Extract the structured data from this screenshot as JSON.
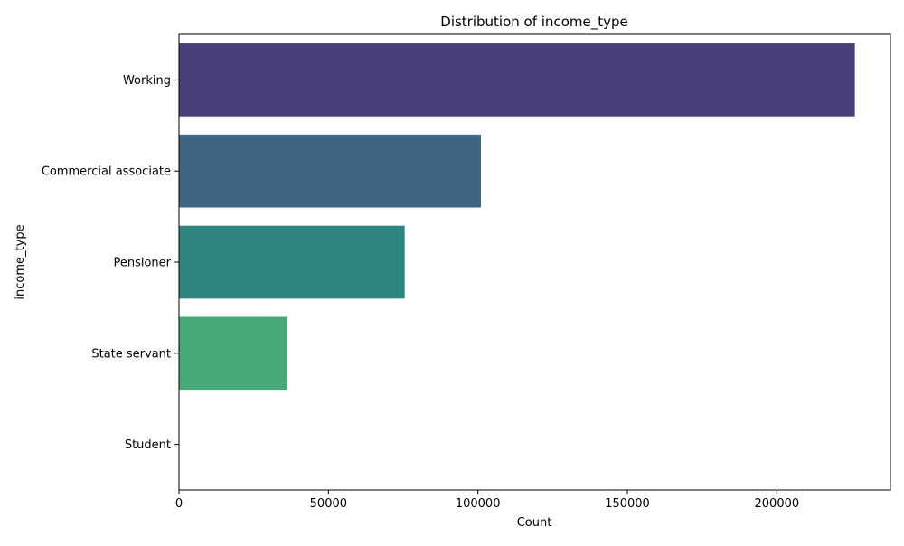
{
  "chart_data": {
    "type": "bar",
    "orientation": "horizontal",
    "title": "Distribution of income_type",
    "xlabel": "Count",
    "ylabel": "income_type",
    "categories": [
      "Working",
      "Commercial associate",
      "Pensioner",
      "State servant",
      "Student"
    ],
    "values": [
      226100,
      101000,
      75500,
      36200,
      17
    ],
    "xlim": [
      0,
      238000
    ],
    "xticks": [
      0,
      50000,
      100000,
      150000,
      200000
    ],
    "colors": [
      "#4b3f7a",
      "#3f6582",
      "#2e8580",
      "#48a978",
      "#7ad151"
    ],
    "grid": false,
    "legend": "none"
  }
}
